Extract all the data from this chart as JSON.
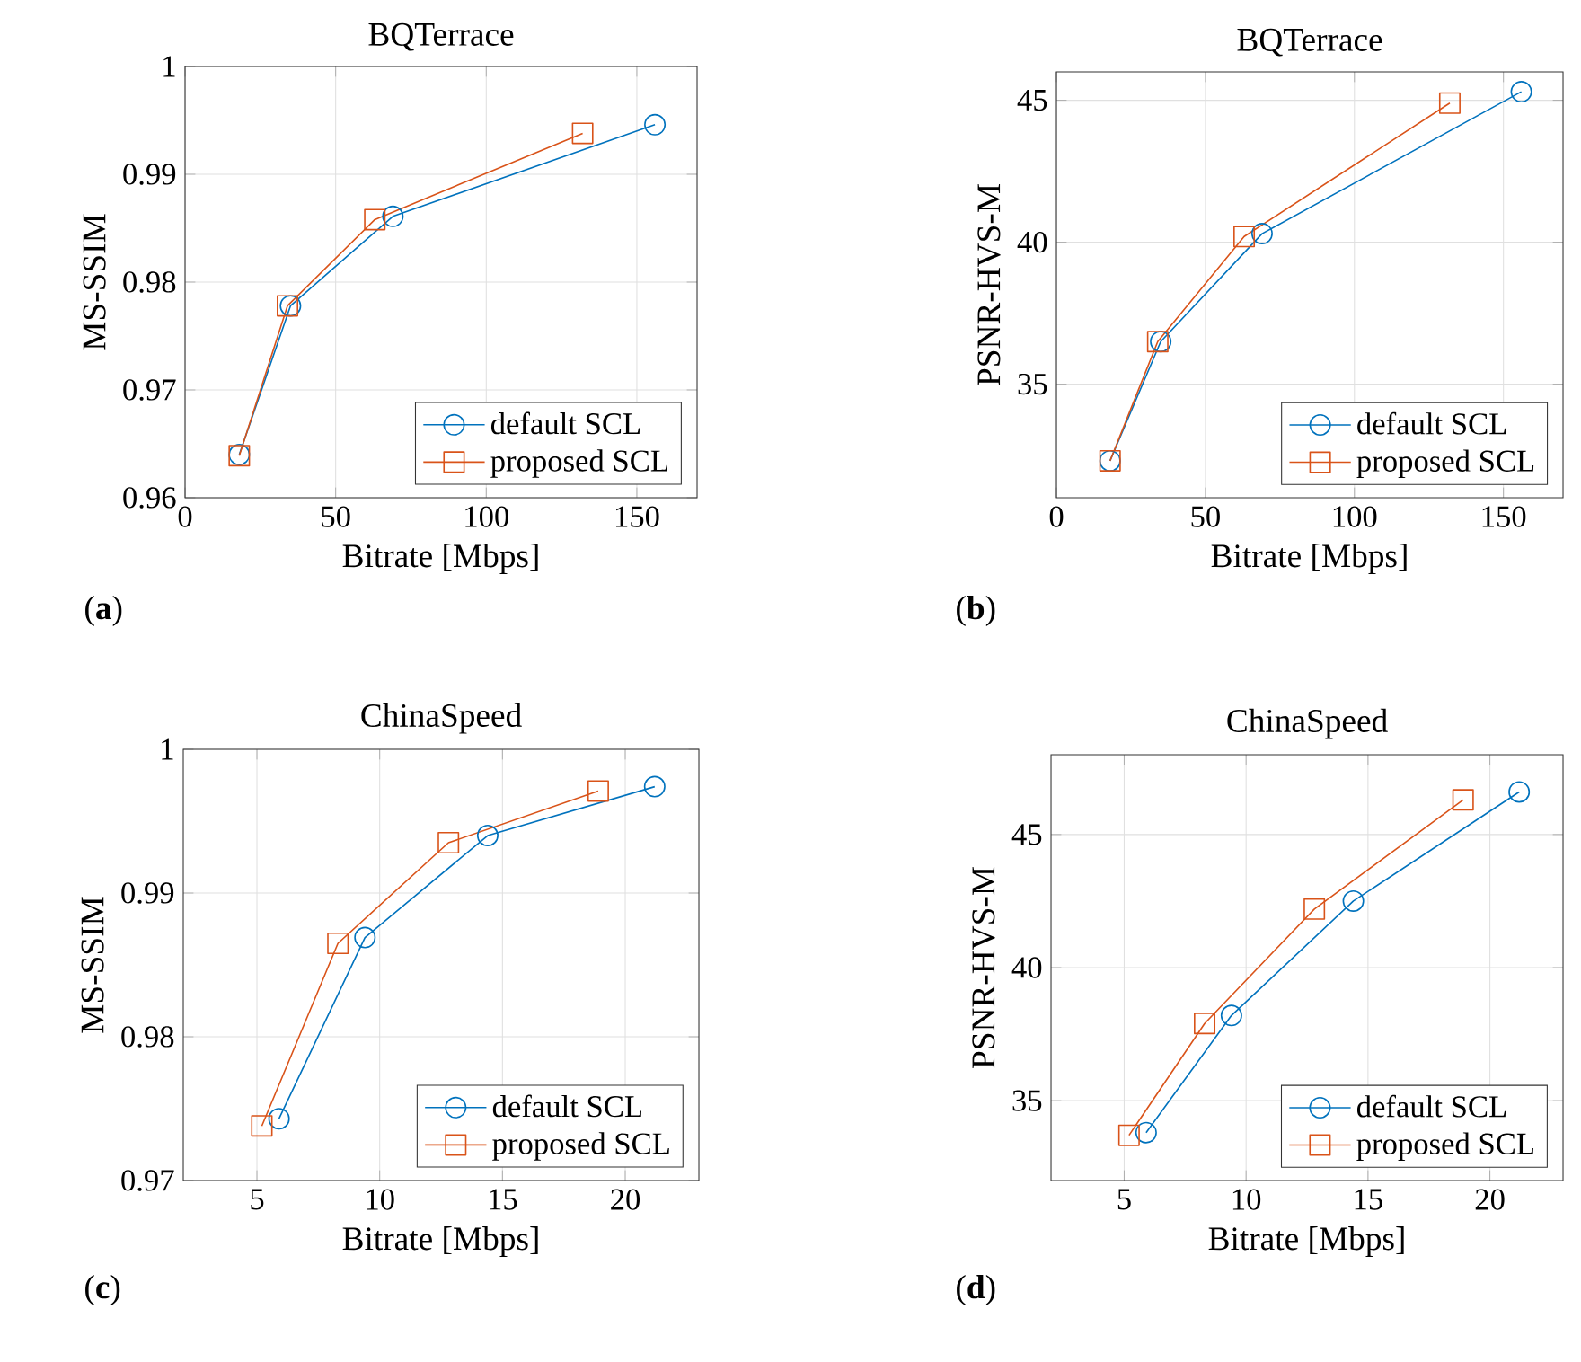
{
  "chart_data": [
    {
      "type": "line",
      "title": "BQTerrace",
      "xlabel": "Bitrate [Mbps]",
      "ylabel": "MS-SSIM",
      "xlim": [
        0,
        170
      ],
      "ylim": [
        0.96,
        1
      ],
      "xticks": [
        0,
        50,
        100,
        150
      ],
      "yticks": [
        0.96,
        0.97,
        0.98,
        0.99,
        1
      ],
      "grid": true,
      "legend": "bottom right",
      "annotations": [
        "(**a**)"
      ],
      "series": [
        {
          "name": "default SCL",
          "color": "#0072bd",
          "marker": "circle",
          "x": [
            18,
            35,
            69,
            156
          ],
          "values": [
            0.964,
            0.9778,
            0.9861,
            0.9946
          ]
        },
        {
          "name": "proposed SCL",
          "color": "#d95319",
          "marker": "square",
          "x": [
            18,
            34,
            63,
            132
          ],
          "values": [
            0.9639,
            0.9778,
            0.9858,
            0.9938
          ]
        }
      ]
    },
    {
      "type": "line",
      "title": "BQTerrace",
      "xlabel": "Bitrate [Mbps]",
      "ylabel": "PSNR-HVS-M",
      "xlim": [
        0,
        170
      ],
      "ylim": [
        31,
        46
      ],
      "xticks": [
        0,
        50,
        100,
        150
      ],
      "yticks": [
        35,
        40,
        45
      ],
      "grid": true,
      "legend": "bottom right",
      "annotations": [
        "(**b**)"
      ],
      "series": [
        {
          "name": "default SCL",
          "color": "#0072bd",
          "marker": "circle",
          "x": [
            18,
            35,
            69,
            156
          ],
          "values": [
            32.3,
            36.5,
            40.3,
            45.3
          ]
        },
        {
          "name": "proposed SCL",
          "color": "#d95319",
          "marker": "square",
          "x": [
            18,
            34,
            63,
            132
          ],
          "values": [
            32.3,
            36.5,
            40.2,
            44.9
          ]
        }
      ]
    },
    {
      "type": "line",
      "title": "ChinaSpeed",
      "xlabel": "Bitrate [Mbps]",
      "ylabel": "MS-SSIM",
      "xlim": [
        2,
        23
      ],
      "ylim": [
        0.97,
        1
      ],
      "xticks": [
        5,
        10,
        15,
        20
      ],
      "yticks": [
        0.97,
        0.98,
        0.99,
        1
      ],
      "grid": true,
      "legend": "bottom right",
      "annotations": [
        "(**c**)"
      ],
      "series": [
        {
          "name": "default SCL",
          "color": "#0072bd",
          "marker": "circle",
          "x": [
            5.9,
            9.4,
            14.4,
            21.2
          ],
          "values": [
            0.9743,
            0.9869,
            0.994,
            0.9974
          ]
        },
        {
          "name": "proposed SCL",
          "color": "#d95319",
          "marker": "square",
          "x": [
            5.2,
            8.3,
            12.8,
            18.9
          ],
          "values": [
            0.9738,
            0.9865,
            0.9935,
            0.9971
          ]
        }
      ]
    },
    {
      "type": "line",
      "title": "ChinaSpeed",
      "xlabel": "Bitrate [Mbps]",
      "ylabel": "PSNR-HVS-M",
      "xlim": [
        2,
        23
      ],
      "ylim": [
        32,
        48
      ],
      "xticks": [
        5,
        10,
        15,
        20
      ],
      "yticks": [
        35,
        40,
        45
      ],
      "grid": true,
      "legend": "bottom right",
      "annotations": [
        "(**d**)"
      ],
      "series": [
        {
          "name": "default SCL",
          "color": "#0072bd",
          "marker": "circle",
          "x": [
            5.9,
            9.4,
            14.4,
            21.2
          ],
          "values": [
            33.8,
            38.2,
            42.5,
            46.6
          ]
        },
        {
          "name": "proposed SCL",
          "color": "#d95319",
          "marker": "square",
          "x": [
            5.2,
            8.3,
            12.8,
            18.9
          ],
          "values": [
            33.7,
            37.9,
            42.2,
            46.3
          ]
        }
      ]
    }
  ]
}
